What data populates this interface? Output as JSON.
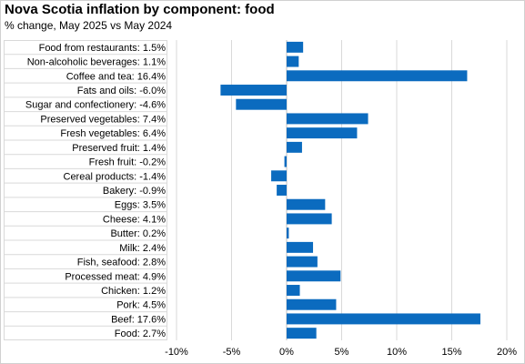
{
  "title": "Nova Scotia inflation by component: food",
  "subtitle": "% change, May 2025 vs May 2024",
  "colors": {
    "bar": "#0b6bbf",
    "gridline": "#d9d9d9",
    "axis": "#bfbfbf"
  },
  "chart_data": {
    "type": "bar",
    "orientation": "horizontal",
    "title": "Nova Scotia inflation by component: food",
    "subtitle": "% change, May 2025 vs May 2024",
    "categories": [
      "Food from restaurants: 1.5%",
      "Non-alcoholic beverages: 1.1%",
      "Coffee and tea: 16.4%",
      "Fats and oils: -6.0%",
      "Sugar and confectionery: -4.6%",
      "Preserved vegetables: 7.4%",
      "Fresh vegetables: 6.4%",
      "Preserved fruit: 1.4%",
      "Fresh fruit: -0.2%",
      "Cereal products: -1.4%",
      "Bakery: -0.9%",
      "Eggs: 3.5%",
      "Cheese: 4.1%",
      "Butter: 0.2%",
      "Milk: 2.4%",
      "Fish, seafood: 2.8%",
      "Processed meat: 4.9%",
      "Chicken: 1.2%",
      "Pork: 4.5%",
      "Beef: 17.6%",
      "Food: 2.7%"
    ],
    "values": [
      1.5,
      1.1,
      16.4,
      -6.0,
      -4.6,
      7.4,
      6.4,
      1.4,
      -0.2,
      -1.4,
      -0.9,
      3.5,
      4.1,
      0.2,
      2.4,
      2.8,
      4.9,
      1.2,
      4.5,
      17.6,
      2.7
    ],
    "xlim": [
      -10,
      20
    ],
    "xticks": [
      -10,
      -5,
      0,
      5,
      10,
      15,
      20
    ],
    "xtick_labels": [
      "-10%",
      "-5%",
      "0%",
      "5%",
      "10%",
      "15%",
      "20%"
    ],
    "xlabel": "",
    "ylabel": "",
    "grid": "vertical",
    "legend": "none"
  }
}
